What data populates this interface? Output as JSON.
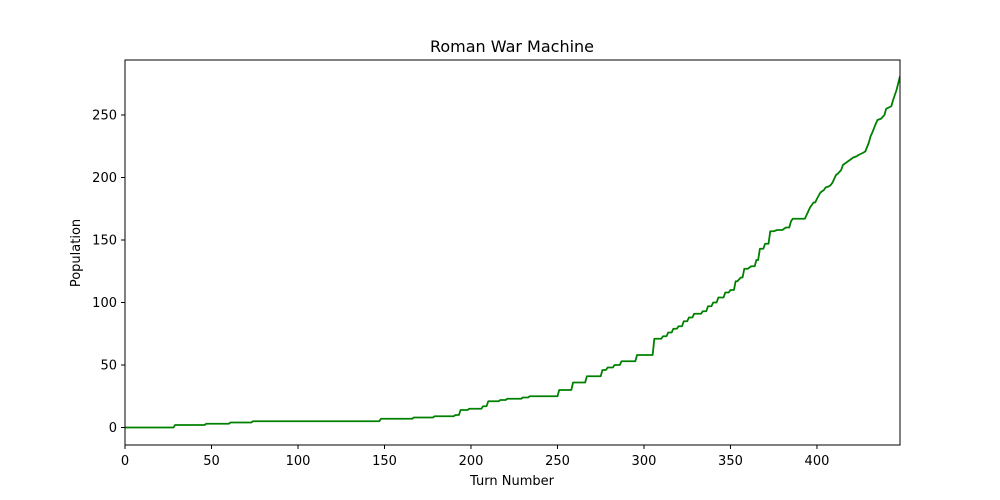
{
  "chart_data": {
    "type": "line",
    "title": "Roman War Machine",
    "xlabel": "Turn Number",
    "ylabel": "Population",
    "xlim": [
      0,
      448
    ],
    "ylim": [
      -14,
      294
    ],
    "xticks": [
      0,
      50,
      100,
      150,
      200,
      250,
      300,
      350,
      400
    ],
    "yticks": [
      0,
      50,
      100,
      150,
      200,
      250
    ],
    "grid": false,
    "series": [
      {
        "color": "#008000",
        "x": [
          0,
          28,
          29,
          46,
          47,
          60,
          61,
          73,
          74,
          147,
          148,
          166,
          167,
          178,
          179,
          190,
          191,
          193,
          194,
          198,
          199,
          206,
          207,
          209,
          210,
          216,
          217,
          220,
          221,
          229,
          230,
          233,
          234,
          250,
          251,
          258,
          259,
          266,
          267,
          275,
          276,
          278,
          279,
          282,
          283,
          286,
          287,
          295,
          296,
          305,
          306,
          310,
          311,
          313,
          314,
          316,
          317,
          319,
          320,
          322,
          323,
          325,
          326,
          328,
          329,
          333,
          334,
          336,
          337,
          339,
          340,
          342,
          343,
          346,
          347,
          349,
          350,
          352,
          353,
          354,
          356,
          357,
          358,
          360,
          362,
          364,
          365,
          366,
          367,
          369,
          370,
          372,
          373,
          375,
          377,
          380,
          382,
          384,
          385,
          386,
          393,
          395,
          396,
          398,
          399,
          400,
          402,
          404,
          405,
          407,
          408,
          409,
          411,
          412,
          414,
          415,
          417,
          418,
          420,
          421,
          423,
          424,
          427,
          428,
          430,
          431,
          432,
          434,
          435,
          437,
          439,
          440,
          443,
          444,
          446,
          448
        ],
        "y": [
          0,
          0,
          2,
          2,
          3,
          3,
          4,
          4,
          5,
          5,
          7,
          7,
          8,
          8,
          9,
          9,
          10,
          10,
          14,
          14,
          15,
          15,
          17,
          17,
          21,
          21,
          22,
          22,
          23,
          23,
          24,
          24,
          25,
          25,
          30,
          30,
          36,
          36,
          41,
          41,
          46,
          46,
          48,
          48,
          50,
          50,
          53,
          53,
          58,
          58,
          71,
          71,
          73,
          73,
          76,
          76,
          79,
          79,
          81,
          81,
          85,
          85,
          88,
          88,
          91,
          91,
          93,
          93,
          97,
          97,
          100,
          100,
          104,
          104,
          108,
          108,
          110,
          110,
          117,
          117,
          120,
          120,
          127,
          127,
          129,
          129,
          134,
          134,
          143,
          143,
          147,
          147,
          157,
          157,
          158,
          158,
          160,
          160,
          165,
          167,
          167,
          173,
          176,
          180,
          180,
          183,
          188,
          190,
          192,
          193,
          194,
          196,
          202,
          203,
          206,
          210,
          212,
          213,
          215,
          216,
          217,
          218,
          220,
          221,
          228,
          233,
          236,
          243,
          246,
          247,
          250,
          255,
          257,
          262,
          270,
          281
        ]
      }
    ]
  }
}
